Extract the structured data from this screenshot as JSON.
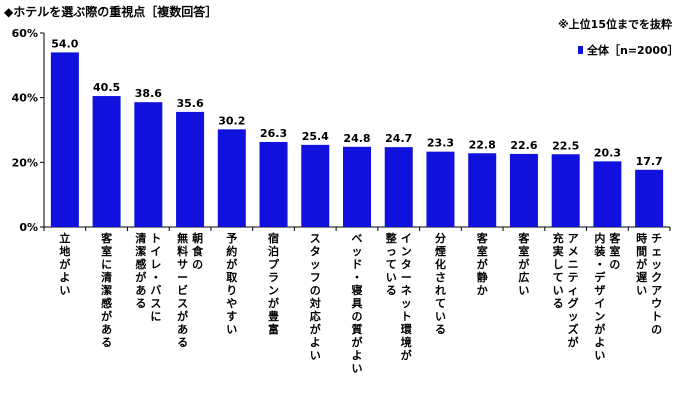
{
  "title": "◆ホテルを選ぶ際の重視点［複数回答］",
  "note": "※上位15位までを抜粋",
  "chart_data": {
    "type": "bar",
    "yunit": "%",
    "ylim": [
      0,
      60
    ],
    "yticks": [
      "0%",
      "20%",
      "40%",
      "60%"
    ],
    "grid": false,
    "legend": "top-right",
    "series": [
      {
        "name": "全体［n=2000］",
        "color": "#1111dd",
        "values": [
          54.0,
          40.5,
          38.6,
          35.6,
          30.2,
          26.3,
          25.4,
          24.8,
          24.7,
          23.3,
          22.8,
          22.6,
          22.5,
          20.3,
          17.7
        ],
        "labels": [
          "54.0",
          "40.5",
          "38.6",
          "35.6",
          "30.2",
          "26.3",
          "25.4",
          "24.8",
          "24.7",
          "23.3",
          "22.8",
          "22.6",
          "22.5",
          "20.3",
          "17.7"
        ]
      }
    ],
    "categories": [
      [
        "立地がよい"
      ],
      [
        "客室に清潔感がある"
      ],
      [
        "トイレ・バスに",
        "清潔感がある"
      ],
      [
        "朝食の",
        "無料サービスがある"
      ],
      [
        "予約が取りやすい"
      ],
      [
        "宿泊プランが豊富"
      ],
      [
        "スタッフの対応がよい"
      ],
      [
        "ベッド・寝具の質がよい"
      ],
      [
        "インターネット環境が",
        "整っている"
      ],
      [
        "分煙化されている"
      ],
      [
        "客室が静か"
      ],
      [
        "客室が広い"
      ],
      [
        "アメニティグッズが",
        "充実している"
      ],
      [
        "客室の",
        "内装・デザインがよい"
      ],
      [
        "チェックアウトの",
        "時間が遅い"
      ]
    ]
  }
}
